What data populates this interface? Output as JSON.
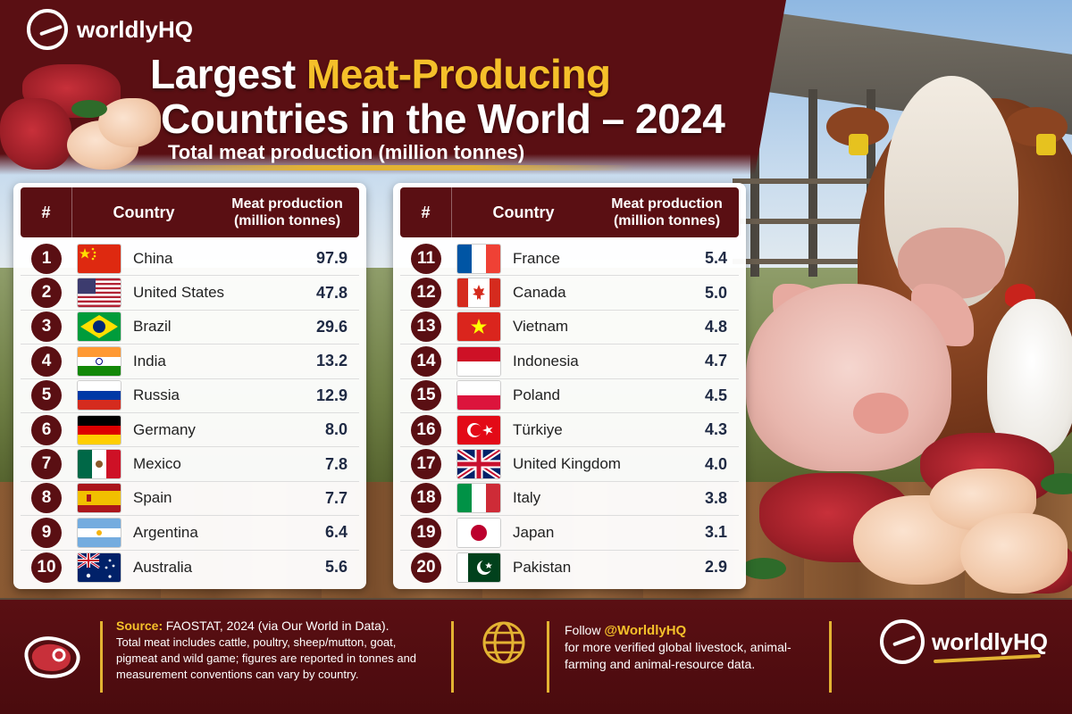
{
  "brand": {
    "name": "worldlyHQ"
  },
  "header": {
    "title_part1": "Largest ",
    "title_highlight": "Meat-Producing",
    "title_line2": "Countries in the World – 2024",
    "subtitle": "Total meat production (million tonnes)"
  },
  "table": {
    "col_rank": "#",
    "col_country": "Country",
    "col_production_line1": "Meat production",
    "col_production_line2": "(million tonnes)",
    "left_rows": [
      {
        "rank": "1",
        "country": "China",
        "value": "97.9",
        "flag": "china"
      },
      {
        "rank": "2",
        "country": "United States",
        "value": "47.8",
        "flag": "usa"
      },
      {
        "rank": "3",
        "country": "Brazil",
        "value": "29.6",
        "flag": "brazil"
      },
      {
        "rank": "4",
        "country": "India",
        "value": "13.2",
        "flag": "india"
      },
      {
        "rank": "5",
        "country": "Russia",
        "value": "12.9",
        "flag": "russia"
      },
      {
        "rank": "6",
        "country": "Germany",
        "value": "8.0",
        "flag": "germany"
      },
      {
        "rank": "7",
        "country": "Mexico",
        "value": "7.8",
        "flag": "mexico"
      },
      {
        "rank": "8",
        "country": "Spain",
        "value": "7.7",
        "flag": "spain"
      },
      {
        "rank": "9",
        "country": "Argentina",
        "value": "6.4",
        "flag": "argentina"
      },
      {
        "rank": "10",
        "country": "Australia",
        "value": "5.6",
        "flag": "australia"
      }
    ],
    "right_rows": [
      {
        "rank": "11",
        "country": "France",
        "value": "5.4",
        "flag": "france"
      },
      {
        "rank": "12",
        "country": "Canada",
        "value": "5.0",
        "flag": "canada"
      },
      {
        "rank": "13",
        "country": "Vietnam",
        "value": "4.8",
        "flag": "vietnam"
      },
      {
        "rank": "14",
        "country": "Indonesia",
        "value": "4.7",
        "flag": "indonesia"
      },
      {
        "rank": "15",
        "country": "Poland",
        "value": "4.5",
        "flag": "poland"
      },
      {
        "rank": "16",
        "country": "Türkiye",
        "value": "4.3",
        "flag": "turkiye"
      },
      {
        "rank": "17",
        "country": "United Kingdom",
        "value": "4.0",
        "flag": "uk"
      },
      {
        "rank": "18",
        "country": "Italy",
        "value": "3.8",
        "flag": "italy"
      },
      {
        "rank": "19",
        "country": "Japan",
        "value": "3.1",
        "flag": "japan"
      },
      {
        "rank": "20",
        "country": "Pakistan",
        "value": "2.9",
        "flag": "pakistan"
      }
    ]
  },
  "footer": {
    "source_label": "Source:",
    "source_value": "FAOSTAT, 2024 (via Our World in Data).",
    "source_note": "Total meat includes cattle, poultry, sheep/mutton, goat, pigmeat and wild game; figures are reported in tonnes and measurement conventions can vary by country.",
    "follow_prefix": "Follow ",
    "follow_handle": "@WorldlyHQ",
    "follow_text": "for more verified global livestock, animal-farming and animal-resource data.",
    "icons": [
      "steak-icon",
      "globe-icon"
    ]
  },
  "colors": {
    "maroon": "#5a0f13",
    "gold": "#f5c02a",
    "value_text": "#1f2a44"
  }
}
